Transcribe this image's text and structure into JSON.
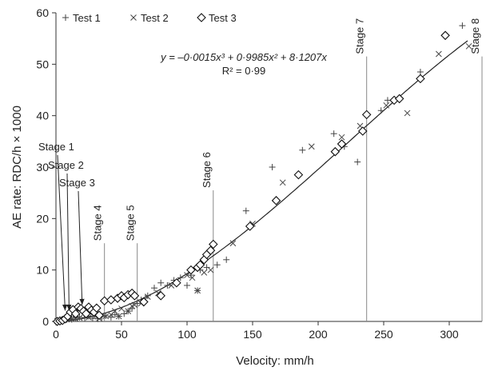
{
  "chart_data": {
    "type": "scatter",
    "xlabel": "Velocity: mm/h",
    "ylabel": "AE rate: RDC/h × 1000",
    "xlim": [
      0,
      325
    ],
    "ylim": [
      0,
      60
    ],
    "x_ticks": [
      "0",
      "50",
      "100",
      "150",
      "200",
      "250",
      "300"
    ],
    "y_ticks": [
      "0",
      "10",
      "20",
      "30",
      "40",
      "50",
      "60"
    ],
    "legend": {
      "placement": "top-left",
      "entries": [
        "Test 1",
        "Test 2",
        "Test 3"
      ]
    },
    "series": [
      {
        "name": "Test 1",
        "marker": "+",
        "points": [
          [
            2,
            0
          ],
          [
            4,
            0.1
          ],
          [
            6,
            0.2
          ],
          [
            8,
            0.3
          ],
          [
            10,
            0.5
          ],
          [
            12,
            0.4
          ],
          [
            15,
            0.6
          ],
          [
            18,
            0.8
          ],
          [
            22,
            0.7
          ],
          [
            25,
            1.0
          ],
          [
            28,
            0.6
          ],
          [
            32,
            0.5
          ],
          [
            35,
            0.9
          ],
          [
            38,
            1.1
          ],
          [
            42,
            0.8
          ],
          [
            45,
            1.3
          ],
          [
            48,
            1.0
          ],
          [
            52,
            1.5
          ],
          [
            55,
            2.0
          ],
          [
            58,
            2.5
          ],
          [
            62,
            3.5
          ],
          [
            65,
            4.2
          ],
          [
            70,
            5.0
          ],
          [
            75,
            6.5
          ],
          [
            80,
            7.5
          ],
          [
            85,
            7.0
          ],
          [
            90,
            8.0
          ],
          [
            95,
            8.5
          ],
          [
            100,
            7.0
          ],
          [
            103,
            9.0
          ],
          [
            108,
            6.0
          ],
          [
            110,
            10.0
          ],
          [
            115,
            10.5
          ],
          [
            123,
            11.0
          ],
          [
            130,
            12.0
          ],
          [
            145,
            21.5
          ],
          [
            165,
            30.0
          ],
          [
            188,
            33.3
          ],
          [
            212,
            36.5
          ],
          [
            220,
            34.0
          ],
          [
            230,
            31.0
          ],
          [
            248,
            41.0
          ],
          [
            253,
            43.0
          ],
          [
            278,
            48.5
          ],
          [
            310,
            57.5
          ]
        ]
      },
      {
        "name": "Test 2",
        "marker": "×",
        "points": [
          [
            1,
            0.1
          ],
          [
            3,
            0.2
          ],
          [
            5,
            0.3
          ],
          [
            8,
            0.4
          ],
          [
            12,
            0.5
          ],
          [
            15,
            0.5
          ],
          [
            18,
            0.7
          ],
          [
            22,
            1.0
          ],
          [
            25,
            0.8
          ],
          [
            30,
            1.0
          ],
          [
            33,
            0.6
          ],
          [
            38,
            1.0
          ],
          [
            42,
            1.3
          ],
          [
            45,
            2.0
          ],
          [
            48,
            1.0
          ],
          [
            50,
            2.5
          ],
          [
            55,
            2.0
          ],
          [
            58,
            3.0
          ],
          [
            60,
            3.2
          ],
          [
            65,
            3.5
          ],
          [
            70,
            4.8
          ],
          [
            78,
            5.5
          ],
          [
            88,
            7.0
          ],
          [
            100,
            9.0
          ],
          [
            104,
            8.5
          ],
          [
            108,
            6.0
          ],
          [
            113,
            9.5
          ],
          [
            118,
            10.0
          ],
          [
            135,
            15.2
          ],
          [
            150,
            19.0
          ],
          [
            173,
            27.0
          ],
          [
            195,
            34.0
          ],
          [
            218,
            35.8
          ],
          [
            232,
            38.0
          ],
          [
            252,
            42.0
          ],
          [
            268,
            40.5
          ],
          [
            292,
            52.0
          ],
          [
            315,
            53.5
          ]
        ]
      },
      {
        "name": "Test 3",
        "marker": "◇",
        "points": [
          [
            1,
            0
          ],
          [
            3,
            0.1
          ],
          [
            5,
            0.2
          ],
          [
            7,
            0.5
          ],
          [
            9,
            1.0
          ],
          [
            11,
            1.8
          ],
          [
            13,
            2.3
          ],
          [
            15,
            1.5
          ],
          [
            17,
            2.8
          ],
          [
            19,
            2.5
          ],
          [
            21,
            2.0
          ],
          [
            23,
            1.5
          ],
          [
            25,
            2.8
          ],
          [
            27,
            2.2
          ],
          [
            29,
            1.8
          ],
          [
            31,
            2.6
          ],
          [
            33,
            1.2
          ],
          [
            37,
            4.0
          ],
          [
            42,
            4.2
          ],
          [
            47,
            4.5
          ],
          [
            50,
            5.0
          ],
          [
            52,
            4.6
          ],
          [
            55,
            5.2
          ],
          [
            58,
            5.5
          ],
          [
            60,
            5.0
          ],
          [
            67,
            3.8
          ],
          [
            80,
            5.0
          ],
          [
            92,
            7.5
          ],
          [
            103,
            10.0
          ],
          [
            108,
            10.5
          ],
          [
            110,
            11.0
          ],
          [
            113,
            12.0
          ],
          [
            115,
            13.0
          ],
          [
            118,
            13.8
          ],
          [
            120,
            15.0
          ],
          [
            148,
            18.5
          ],
          [
            168,
            23.5
          ],
          [
            185,
            28.5
          ],
          [
            213,
            33.0
          ],
          [
            218,
            34.5
          ],
          [
            234,
            37.0
          ],
          [
            237,
            40.2
          ],
          [
            258,
            43.0
          ],
          [
            262,
            43.3
          ],
          [
            278,
            47.2
          ],
          [
            297,
            55.6
          ]
        ]
      }
    ],
    "fit": {
      "coefficients": {
        "a3": -0.0015,
        "a2": 0.9985,
        "a1": 8.1207,
        "a0": 0
      },
      "x_range": [
        0,
        315
      ],
      "equation_text": "y = –0·0015x³ + 0·9985x² + 8·1207x",
      "r2_text": "R² = 0·99"
    },
    "stages": [
      {
        "label": "Stage 1",
        "x": 7,
        "style": "arrow"
      },
      {
        "label": "Stage 2",
        "x": 10,
        "style": "arrow"
      },
      {
        "label": "Stage 3",
        "x": 20,
        "style": "arrow"
      },
      {
        "label": "Stage 4",
        "x": 37,
        "style": "vline"
      },
      {
        "label": "Stage 5",
        "x": 62,
        "style": "vline"
      },
      {
        "label": "Stage 6",
        "x": 120,
        "style": "vline"
      },
      {
        "label": "Stage 7",
        "x": 237,
        "style": "vline"
      },
      {
        "label": "Stage 8",
        "x": 325,
        "style": "vline"
      }
    ]
  }
}
